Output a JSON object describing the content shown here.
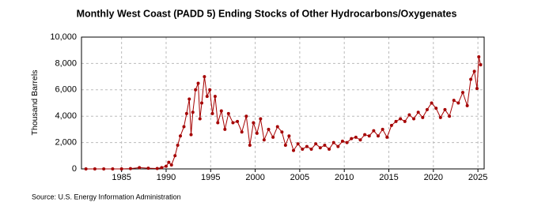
{
  "chart_data": {
    "type": "line",
    "title": "Monthly West Coast (PADD 5) Ending Stocks of Other Hydrocarbons/Oxygenates",
    "y_label": "Thousand Barrels",
    "source": "Source: U.S. Energy Information Administration",
    "x": [
      1981,
      1982,
      1983,
      1984,
      1985,
      1986,
      1987,
      1988,
      1989,
      1989.5,
      1990,
      1990.3,
      1990.6,
      1991,
      1991.3,
      1991.6,
      1992,
      1992.3,
      1992.6,
      1992.8,
      1993,
      1993.3,
      1993.6,
      1993.8,
      1994,
      1994.3,
      1994.6,
      1994.9,
      1995.2,
      1995.5,
      1995.8,
      1996.2,
      1996.6,
      1997,
      1997.5,
      1998,
      1998.5,
      1999,
      1999.4,
      1999.8,
      2000.2,
      2000.6,
      2001,
      2001.5,
      2002,
      2002.5,
      2003,
      2003.4,
      2003.8,
      2004.3,
      2004.8,
      2005.3,
      2005.8,
      2006.3,
      2006.8,
      2007.3,
      2007.8,
      2008.3,
      2008.8,
      2009.3,
      2009.8,
      2010.3,
      2010.8,
      2011.3,
      2011.8,
      2012.3,
      2012.8,
      2013.3,
      2013.8,
      2014.3,
      2014.8,
      2015.3,
      2015.8,
      2016.3,
      2016.8,
      2017.3,
      2017.8,
      2018.3,
      2018.8,
      2019.3,
      2019.8,
      2020.3,
      2020.8,
      2021.3,
      2021.8,
      2022.3,
      2022.8,
      2023.3,
      2023.8,
      2024.2,
      2024.6,
      2024.9,
      2025.1,
      2025.3
    ],
    "series": [
      {
        "name": "West Coast (PADD 5) Ending Stocks of Other Hydrocarbons/Oxygenates",
        "color": "#a50000",
        "values": [
          0,
          0,
          0,
          0,
          0,
          20,
          100,
          50,
          30,
          100,
          200,
          500,
          300,
          1000,
          1800,
          2500,
          3200,
          4200,
          5300,
          2600,
          4300,
          6000,
          6500,
          3800,
          5000,
          7000,
          5500,
          6000,
          4200,
          5500,
          3500,
          4400,
          3000,
          4200,
          3500,
          3600,
          2800,
          4000,
          1800,
          3500,
          2700,
          3800,
          2200,
          3000,
          2400,
          3200,
          2800,
          1800,
          2500,
          1400,
          1900,
          1500,
          1700,
          1500,
          1900,
          1600,
          1800,
          1500,
          2000,
          1700,
          2100,
          2000,
          2300,
          2400,
          2200,
          2600,
          2500,
          2900,
          2500,
          3000,
          2400,
          3300,
          3600,
          3800,
          3600,
          4100,
          3800,
          4300,
          3900,
          4500,
          5000,
          4600,
          3900,
          4500,
          4000,
          5200,
          5000,
          5800,
          4800,
          6800,
          7400,
          6100,
          8500,
          7900
        ]
      }
    ],
    "xlim": [
      1980.5,
      2025.7
    ],
    "xticks": [
      1985,
      1990,
      1995,
      2000,
      2005,
      2010,
      2015,
      2020,
      2025
    ],
    "ylim": [
      0,
      10000
    ],
    "yticks": [
      0,
      {
        "value": 2000,
        "label": "2,000"
      },
      {
        "value": 4000,
        "label": "4,000"
      },
      {
        "value": 6000,
        "label": "6,000"
      },
      {
        "value": 8000,
        "label": "8,000"
      },
      {
        "value": 10000,
        "label": "10,000"
      }
    ],
    "grid": true
  }
}
